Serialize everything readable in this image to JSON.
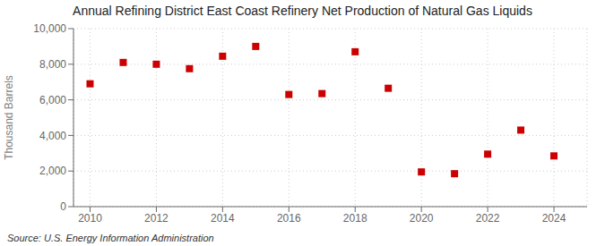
{
  "chart_data": {
    "type": "scatter",
    "title": "Annual Refining District East Coast Refinery Net Production of Natural Gas Liquids",
    "ylabel": "Thousand Barrels",
    "annotations": [
      "Source: U.S. Energy Information Administration"
    ],
    "x": [
      2010,
      2011,
      2012,
      2013,
      2014,
      2015,
      2016,
      2017,
      2018,
      2019,
      2020,
      2021,
      2022,
      2023,
      2024
    ],
    "values": [
      6900,
      8100,
      8000,
      7750,
      8450,
      9000,
      6300,
      6350,
      8700,
      6650,
      1950,
      1850,
      2950,
      4300,
      2850
    ],
    "color": "#cc0000",
    "marker": "square",
    "xlim": [
      2009.5,
      2025
    ],
    "xticks": [
      2010,
      2012,
      2014,
      2016,
      2018,
      2020,
      2022,
      2024
    ],
    "ylim": [
      0,
      10000
    ],
    "yticks": [
      0,
      {
        "value": 2000,
        "label": "2,000"
      },
      {
        "value": 4000,
        "label": "4,000"
      },
      {
        "value": 6000,
        "label": "6,000"
      },
      {
        "value": 8000,
        "label": "8,000"
      },
      {
        "value": 10000,
        "label": "10,000"
      }
    ],
    "grid": true
  }
}
